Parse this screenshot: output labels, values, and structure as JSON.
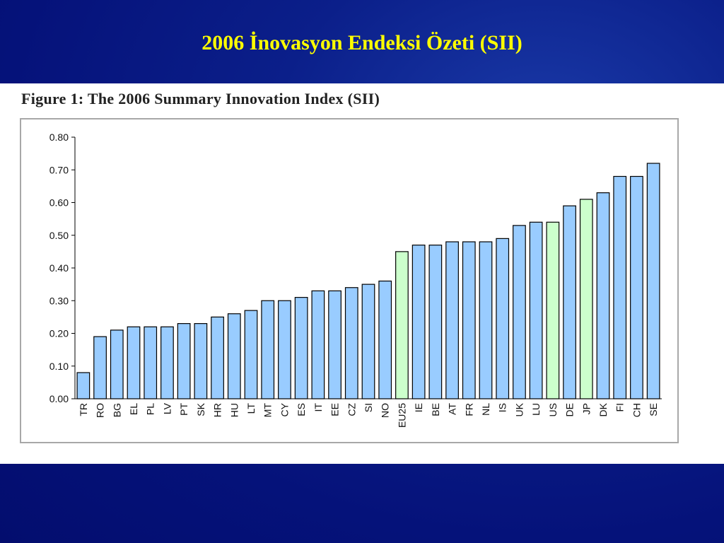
{
  "slide": {
    "title": "2006 İnovasyon Endeksi Özeti (SII)"
  },
  "figure": {
    "caption": "Figure 1: The 2006 Summary Innovation Index (SII)"
  },
  "colors": {
    "background": "#05127a",
    "title": "#ffff00",
    "bar_default": "#99ccff",
    "bar_highlight": "#ccffcc",
    "bar_stroke": "#000000"
  },
  "chart_data": {
    "type": "bar",
    "title": "Figure 1: The 2006 Summary Innovation Index (SII)",
    "xlabel": "",
    "ylabel": "",
    "ylim": [
      0,
      0.8
    ],
    "yticks": [
      "0.00",
      "0.10",
      "0.20",
      "0.30",
      "0.40",
      "0.50",
      "0.60",
      "0.70",
      "0.80"
    ],
    "grid": false,
    "legend": "none",
    "categories": [
      "TR",
      "RO",
      "BG",
      "EL",
      "PL",
      "LV",
      "PT",
      "SK",
      "HR",
      "HU",
      "LT",
      "MT",
      "CY",
      "ES",
      "IT",
      "EE",
      "CZ",
      "SI",
      "NO",
      "EU25",
      "IE",
      "BE",
      "AT",
      "FR",
      "NL",
      "IS",
      "UK",
      "LU",
      "US",
      "DE",
      "JP",
      "DK",
      "FI",
      "CH",
      "SE"
    ],
    "values": [
      0.08,
      0.19,
      0.21,
      0.22,
      0.22,
      0.22,
      0.23,
      0.23,
      0.25,
      0.26,
      0.27,
      0.3,
      0.3,
      0.31,
      0.33,
      0.33,
      0.34,
      0.35,
      0.36,
      0.45,
      0.47,
      0.47,
      0.48,
      0.48,
      0.48,
      0.49,
      0.53,
      0.54,
      0.54,
      0.59,
      0.61,
      0.63,
      0.68,
      0.68,
      0.72
    ],
    "highlight": [
      "EU25",
      "US",
      "JP"
    ]
  }
}
